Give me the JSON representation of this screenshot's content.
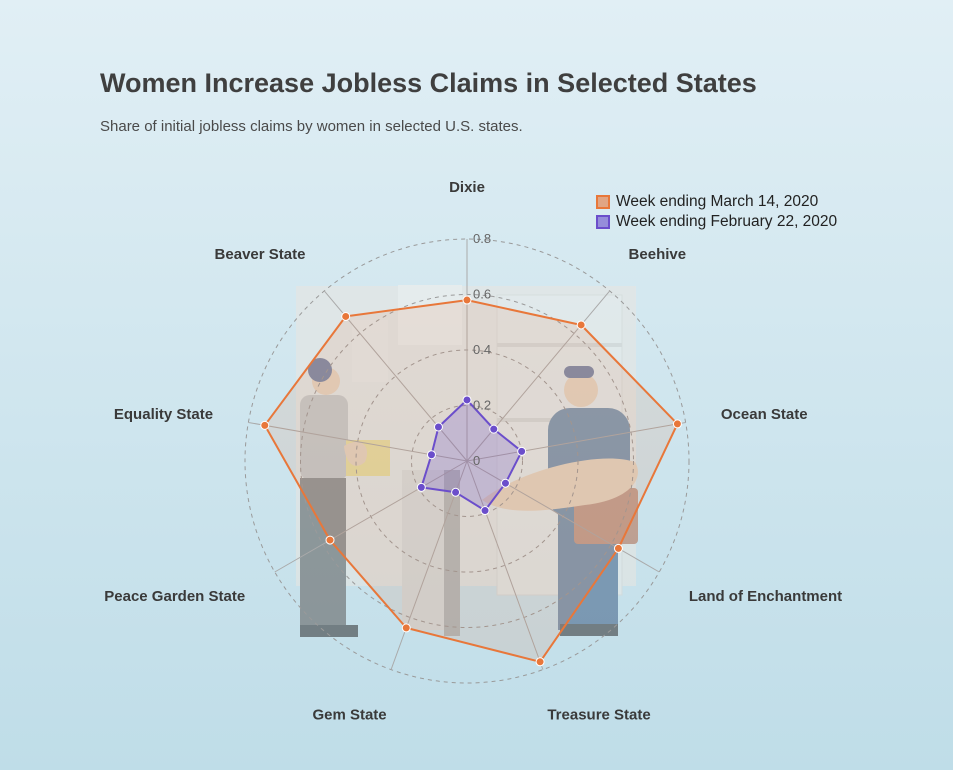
{
  "title": "Women Increase Jobless Claims in Selected States",
  "subtitle": "Share of initial jobless claims by women in selected U.S. states.",
  "colors": {
    "series_march": "#e8773a",
    "series_feb": "#6b4ecb"
  },
  "chart_data": {
    "type": "radar",
    "categories": [
      "Dixie",
      "Beehive",
      "Ocean State",
      "Land of Enchantment",
      "Treasure State",
      "Gem State",
      "Peace Garden State",
      "Equality State",
      "Beaver State"
    ],
    "series": [
      {
        "name": "Week ending March 14, 2020",
        "values": [
          0.58,
          0.64,
          0.77,
          0.63,
          0.77,
          0.64,
          0.57,
          0.74,
          0.68
        ]
      },
      {
        "name": "Week ending February 22, 2020",
        "values": [
          0.22,
          0.15,
          0.2,
          0.16,
          0.19,
          0.12,
          0.19,
          0.13,
          0.16
        ]
      }
    ],
    "radial_ticks": [
      "0",
      "0.2",
      "0.4",
      "0.6",
      "0.8"
    ],
    "rmax": 0.8,
    "grid": true,
    "legend": "top-right"
  }
}
